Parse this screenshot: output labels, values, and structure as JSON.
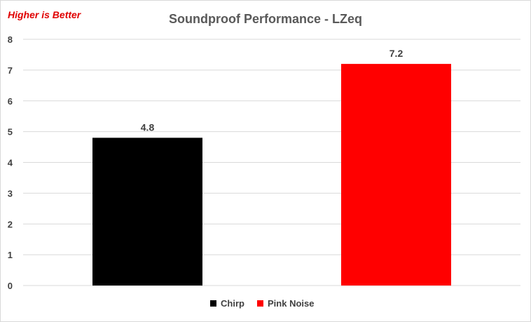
{
  "note": {
    "text": "Higher is Better",
    "color": "#e00000"
  },
  "chart_data": {
    "type": "bar",
    "title": "Soundproof Performance - LZeq",
    "categories": [
      "Chirp",
      "Pink Noise"
    ],
    "values": [
      4.8,
      7.2
    ],
    "data_labels": [
      "4.8",
      "7.2"
    ],
    "colors": [
      "#000000",
      "#ff0000"
    ],
    "ylim": [
      0,
      8
    ],
    "yticks": [
      "0",
      "1",
      "2",
      "3",
      "4",
      "5",
      "6",
      "7",
      "8"
    ],
    "grid": true,
    "legend": {
      "position": "bottom",
      "entries": [
        "Chirp",
        "Pink Noise"
      ]
    }
  }
}
